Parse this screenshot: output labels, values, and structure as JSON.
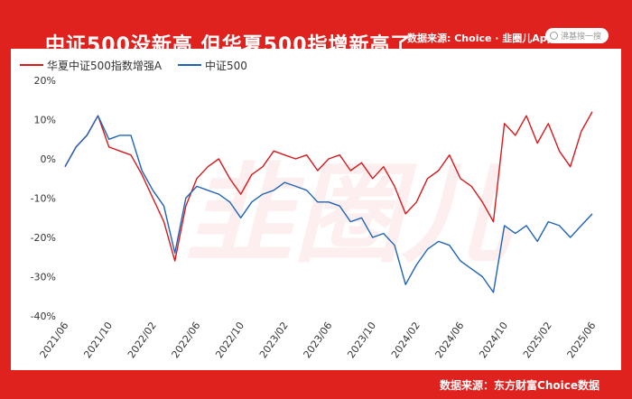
{
  "title": "中证500没新高  但华夏500指增新高了",
  "source_top": "数据来源: Choice · 韭圈儿App",
  "search": {
    "placeholder": "沸基搜一搜"
  },
  "source_bottom": "数据来源：东方财富Choice数据",
  "watermark": "韭圈儿",
  "colors": {
    "frame": "#e0221f",
    "series_red": "#d7191c",
    "series_blue": "#1f63b8"
  },
  "chart_data": {
    "type": "line",
    "title": "中证500没新高  但华夏500指增新高了",
    "ylim": [
      -40,
      20
    ],
    "yticks": [
      "20%",
      "10%",
      "0%",
      "-10%",
      "-20%",
      "-30%",
      "-40%"
    ],
    "yticks_values": [
      20,
      10,
      0,
      -10,
      -20,
      -30,
      -40
    ],
    "xticks": [
      "2021/06",
      "2021/10",
      "2022/02",
      "2022/06",
      "2022/10",
      "2023/02",
      "2023/06",
      "2023/10",
      "2024/02",
      "2024/06",
      "2024/10",
      "2025/02",
      "2025/06"
    ],
    "grid": false,
    "legend": "top-left",
    "series": [
      {
        "name": "华夏中证500指数增强A",
        "color": "#d7191c",
        "x": [
          "2021/06",
          "2021/07",
          "2021/08",
          "2021/09",
          "2021/10",
          "2021/11",
          "2021/12",
          "2022/01",
          "2022/02",
          "2022/03",
          "2022/04",
          "2022/05",
          "2022/06",
          "2022/07",
          "2022/08",
          "2022/09",
          "2022/10",
          "2022/11",
          "2022/12",
          "2023/01",
          "2023/02",
          "2023/03",
          "2023/04",
          "2023/05",
          "2023/06",
          "2023/07",
          "2023/08",
          "2023/09",
          "2023/10",
          "2023/11",
          "2023/12",
          "2024/01",
          "2024/02",
          "2024/03",
          "2024/04",
          "2024/05",
          "2024/06",
          "2024/07",
          "2024/08",
          "2024/09",
          "2024/10",
          "2024/11",
          "2024/12",
          "2025/01",
          "2025/02",
          "2025/03",
          "2025/04",
          "2025/05",
          "2025/06"
        ],
        "values": [
          -2,
          3,
          6,
          11,
          3,
          2,
          1,
          -4,
          -10,
          -16,
          -26,
          -12,
          -5,
          -2,
          0,
          -5,
          -9,
          -4,
          -2,
          2,
          1,
          0,
          1,
          -3,
          0,
          1,
          -3,
          -1,
          -5,
          -2,
          -7,
          -14,
          -11,
          -5,
          -3,
          1,
          -5,
          -7,
          -11,
          -16,
          9,
          6,
          11,
          4,
          9,
          2,
          -2,
          7,
          12
        ]
      },
      {
        "name": "中证500",
        "color": "#1f63b8",
        "x": [
          "2021/06",
          "2021/07",
          "2021/08",
          "2021/09",
          "2021/10",
          "2021/11",
          "2021/12",
          "2022/01",
          "2022/02",
          "2022/03",
          "2022/04",
          "2022/05",
          "2022/06",
          "2022/07",
          "2022/08",
          "2022/09",
          "2022/10",
          "2022/11",
          "2022/12",
          "2023/01",
          "2023/02",
          "2023/03",
          "2023/04",
          "2023/05",
          "2023/06",
          "2023/07",
          "2023/08",
          "2023/09",
          "2023/10",
          "2023/11",
          "2023/12",
          "2024/01",
          "2024/02",
          "2024/03",
          "2024/04",
          "2024/05",
          "2024/06",
          "2024/07",
          "2024/08",
          "2024/09",
          "2024/10",
          "2024/11",
          "2024/12",
          "2025/01",
          "2025/02",
          "2025/03",
          "2025/04",
          "2025/05",
          "2025/06"
        ],
        "values": [
          -2,
          3,
          6,
          11,
          5,
          6,
          6,
          -3,
          -8,
          -12,
          -24,
          -10,
          -7,
          -8,
          -9,
          -11,
          -15,
          -11,
          -9,
          -8,
          -6,
          -7,
          -8,
          -11,
          -11,
          -12,
          -16,
          -15,
          -20,
          -19,
          -22,
          -32,
          -27,
          -23,
          -21,
          -22,
          -26,
          -28,
          -30,
          -34,
          -17,
          -19,
          -17,
          -21,
          -16,
          -17,
          -20,
          -17,
          -14
        ]
      }
    ]
  }
}
